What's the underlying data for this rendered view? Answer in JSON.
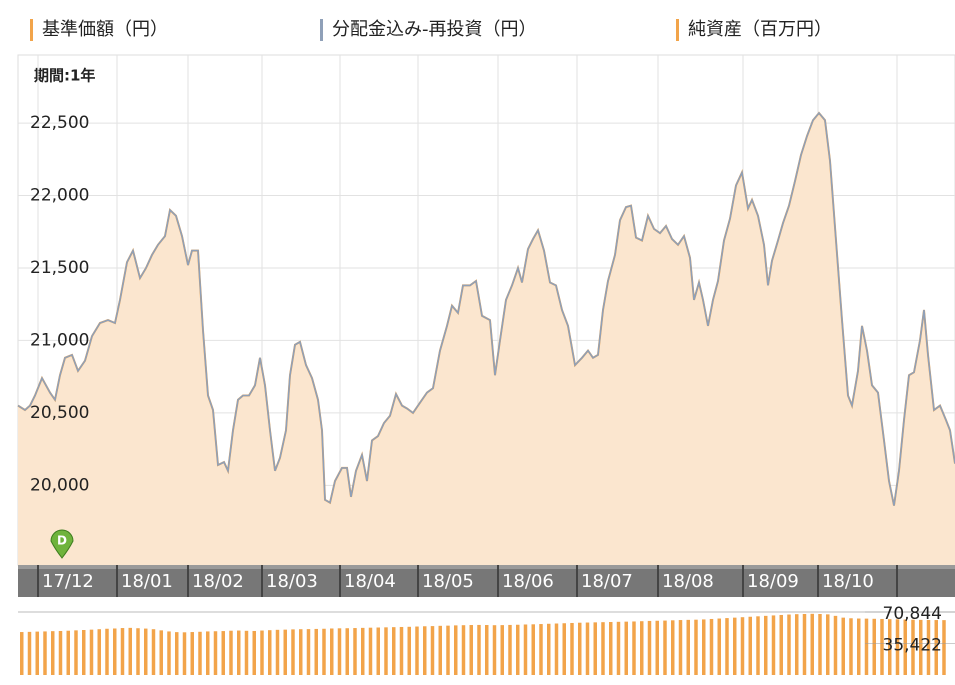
{
  "chart_data": [
    {
      "type": "area",
      "period_label": "期間:1年",
      "x": [
        0,
        7,
        12,
        17,
        24,
        32,
        37,
        42,
        47,
        54,
        60,
        67,
        74,
        82,
        90,
        97,
        102,
        109,
        115,
        122,
        128,
        134,
        140,
        147,
        152,
        158,
        164,
        170,
        174,
        180,
        185,
        190,
        195,
        200,
        206,
        210,
        215,
        220,
        225,
        231,
        237,
        242,
        247,
        252,
        257,
        262,
        268,
        272,
        277,
        282,
        288,
        294,
        300,
        304,
        307,
        312,
        317,
        324,
        329,
        333,
        338,
        344,
        349,
        354,
        360,
        366,
        372,
        378,
        384,
        389,
        395,
        402,
        409,
        415,
        422,
        429,
        434,
        440,
        445,
        452,
        458,
        464,
        472,
        477,
        482,
        488,
        494,
        500,
        504,
        510,
        515,
        520,
        526,
        532,
        538,
        544,
        550,
        557,
        564,
        570,
        575,
        580,
        585,
        590,
        597,
        602,
        608,
        613,
        618,
        624,
        630,
        636,
        642,
        648,
        654,
        660,
        666,
        672,
        676,
        681,
        685,
        690,
        695,
        700,
        706,
        712,
        718,
        724,
        730,
        734,
        740,
        746,
        750,
        754,
        760,
        765,
        771,
        777,
        783,
        789,
        795,
        801,
        807,
        812,
        818,
        824,
        830,
        834,
        840,
        844,
        849,
        854,
        860,
        866,
        871,
        876,
        881,
        886,
        891,
        896,
        902,
        906,
        910,
        916,
        922,
        928,
        932,
        937
      ],
      "series": [
        {
          "name": "基準価額（円）",
          "color": "#f2a44a",
          "fill": "#fbe6cf",
          "values": [
            20550,
            20520,
            20550,
            20620,
            20740,
            20640,
            20590,
            20760,
            20880,
            20900,
            20790,
            20860,
            21030,
            21120,
            21140,
            21120,
            21280,
            21540,
            21620,
            21430,
            21500,
            21590,
            21660,
            21720,
            21900,
            21860,
            21720,
            21520,
            21620,
            21620,
            21070,
            20620,
            20520,
            20140,
            20160,
            20100,
            20380,
            20590,
            20620,
            20620,
            20690,
            20880,
            20690,
            20380,
            20100,
            20190,
            20380,
            20760,
            20970,
            20990,
            20830,
            20740,
            20590,
            20380,
            19900,
            19880,
            20030,
            20120,
            20120,
            19920,
            20100,
            20210,
            20030,
            20310,
            20340,
            20430,
            20480,
            20630,
            20550,
            20530,
            20500,
            20570,
            20640,
            20670,
            20930,
            21100,
            21240,
            21190,
            21380,
            21380,
            21410,
            21170,
            21140,
            20760,
            21000,
            21280,
            21380,
            21500,
            21400,
            21630,
            21700,
            21760,
            21620,
            21400,
            21380,
            21210,
            21100,
            20830,
            20880,
            20930,
            20880,
            20900,
            21210,
            21410,
            21590,
            21830,
            21920,
            21930,
            21710,
            21690,
            21860,
            21770,
            21740,
            21790,
            21700,
            21660,
            21720,
            21570,
            21280,
            21400,
            21280,
            21100,
            21280,
            21410,
            21690,
            21840,
            22070,
            22160,
            21910,
            21970,
            21860,
            21660,
            21380,
            21550,
            21690,
            21810,
            21930,
            22100,
            22280,
            22410,
            22520,
            22570,
            22520,
            22240,
            21690,
            21140,
            20620,
            20550,
            20790,
            21100,
            20930,
            20690,
            20640,
            20310,
            20030,
            19860,
            20100,
            20450,
            20760,
            20780,
            21000,
            21210,
            20900,
            20520,
            20550,
            20450,
            20380,
            20150
          ]
        },
        {
          "name": "分配金込み-再投資（円）",
          "color": "#8fa0b8",
          "values": [
            20550,
            20520,
            20550,
            20620,
            20740,
            20640,
            20590,
            20760,
            20880,
            20900,
            20790,
            20860,
            21030,
            21120,
            21140,
            21120,
            21280,
            21540,
            21620,
            21430,
            21500,
            21590,
            21660,
            21720,
            21900,
            21860,
            21720,
            21520,
            21620,
            21620,
            21070,
            20620,
            20520,
            20140,
            20160,
            20100,
            20380,
            20590,
            20620,
            20620,
            20690,
            20880,
            20690,
            20380,
            20100,
            20190,
            20380,
            20760,
            20970,
            20990,
            20830,
            20740,
            20590,
            20380,
            19900,
            19880,
            20030,
            20120,
            20120,
            19920,
            20100,
            20210,
            20030,
            20310,
            20340,
            20430,
            20480,
            20630,
            20550,
            20530,
            20500,
            20570,
            20640,
            20670,
            20930,
            21100,
            21240,
            21190,
            21380,
            21380,
            21410,
            21170,
            21140,
            20760,
            21000,
            21280,
            21380,
            21500,
            21400,
            21630,
            21700,
            21760,
            21620,
            21400,
            21380,
            21210,
            21100,
            20830,
            20880,
            20930,
            20880,
            20900,
            21210,
            21410,
            21590,
            21830,
            21920,
            21930,
            21710,
            21690,
            21860,
            21770,
            21740,
            21790,
            21700,
            21660,
            21720,
            21570,
            21280,
            21400,
            21280,
            21100,
            21280,
            21410,
            21690,
            21840,
            22070,
            22160,
            21910,
            21970,
            21860,
            21660,
            21380,
            21550,
            21690,
            21810,
            21930,
            22100,
            22280,
            22410,
            22520,
            22570,
            22520,
            22240,
            21690,
            21140,
            20620,
            20550,
            20790,
            21100,
            20930,
            20690,
            20640,
            20310,
            20030,
            19860,
            20100,
            20450,
            20760,
            20780,
            21000,
            21210,
            20900,
            20520,
            20550,
            20450,
            20380,
            20150
          ]
        }
      ],
      "xlim": [
        0,
        937
      ],
      "xticks": [
        {
          "value": 20,
          "label": "17/12"
        },
        {
          "value": 99,
          "label": "18/01"
        },
        {
          "value": 170,
          "label": "18/02"
        },
        {
          "value": 244,
          "label": "18/03"
        },
        {
          "value": 322,
          "label": "18/04"
        },
        {
          "value": 400,
          "label": "18/05"
        },
        {
          "value": 480,
          "label": "18/06"
        },
        {
          "value": 559,
          "label": "18/07"
        },
        {
          "value": 640,
          "label": "18/08"
        },
        {
          "value": 725,
          "label": "18/09"
        },
        {
          "value": 800,
          "label": "18/10"
        },
        {
          "value": 879,
          "label": null
        }
      ],
      "ylim": [
        19450,
        22970
      ],
      "yticks": [
        {
          "value": 20000,
          "label": "20,000"
        },
        {
          "value": 20500,
          "label": "20,500"
        },
        {
          "value": 21000,
          "label": "21,000"
        },
        {
          "value": 21500,
          "label": "21,500"
        },
        {
          "value": 22000,
          "label": "22,000"
        },
        {
          "value": 22500,
          "label": "22,500"
        }
      ],
      "grid": true,
      "annotations": [
        {
          "label": "D",
          "x": 44,
          "color": "#6fb33c"
        }
      ]
    },
    {
      "type": "bar",
      "series": [
        {
          "name": "純資産（百万円）",
          "color": "#f2a44a",
          "values": [
            48300,
            48500,
            48800,
            49000,
            49300,
            49500,
            49800,
            50200,
            50600,
            51000,
            51500,
            52000,
            52300,
            52800,
            53000,
            52600,
            52200,
            51500,
            50200,
            49000,
            48200,
            48000,
            48300,
            48600,
            49000,
            49200,
            49400,
            49800,
            50000,
            49700,
            49500,
            50000,
            50400,
            50800,
            51000,
            51300,
            51500,
            51600,
            51800,
            52000,
            52300,
            52500,
            52600,
            52800,
            53000,
            53200,
            53400,
            53600,
            53800,
            54000,
            54200,
            54500,
            54800,
            55000,
            55300,
            55500,
            55800,
            56000,
            56200,
            56300,
            56200,
            56000,
            56100,
            56300,
            56500,
            56800,
            57000,
            57300,
            57600,
            57900,
            58200,
            58500,
            58800,
            59000,
            59200,
            59400,
            59600,
            59800,
            60000,
            60200,
            60500,
            60800,
            61000,
            61200,
            61500,
            61800,
            62000,
            62200,
            62500,
            63000,
            63500,
            64000,
            64500,
            65000,
            65500,
            66000,
            66500,
            67000,
            67500,
            68000,
            68400,
            68600,
            68800,
            68600,
            68200,
            66500,
            64500,
            63800,
            63500,
            63400,
            63200,
            63000,
            62800,
            62600,
            62400,
            62200,
            62000,
            61900,
            61800,
            61700
          ]
        }
      ],
      "ylim": [
        0,
        70844
      ],
      "yticks": [
        {
          "value": 70844,
          "label": "70,844"
        },
        {
          "value": 35422,
          "label": "35,422"
        }
      ]
    }
  ]
}
